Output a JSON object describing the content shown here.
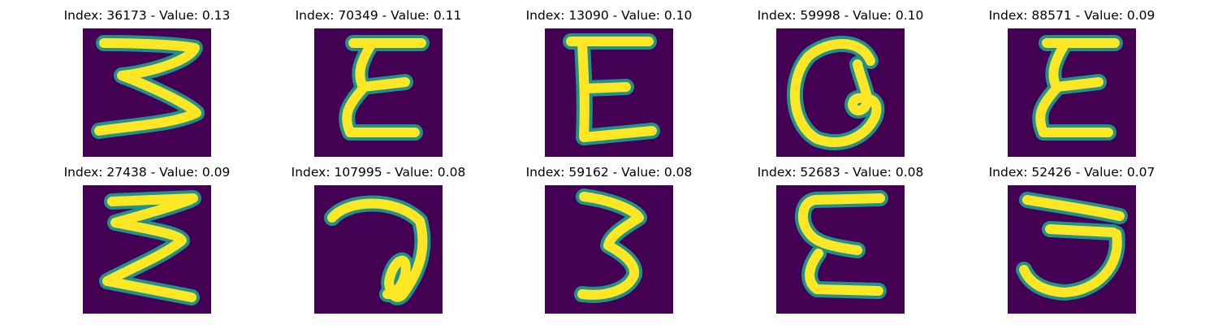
{
  "figure": {
    "background": "#440154",
    "stroke_outer": "#21918c",
    "stroke_inner": "#fde725",
    "colormap": "viridis",
    "items": [
      {
        "title": "Index: 36173 - Value: 0.13",
        "glyph": "zigzag-3"
      },
      {
        "title": "Index: 70349 - Value: 0.11",
        "glyph": "epsilon-flat"
      },
      {
        "title": "Index: 13090 - Value: 0.10",
        "glyph": "E-shape"
      },
      {
        "title": "Index: 59998 - Value: 0.10",
        "glyph": "a-loop"
      },
      {
        "title": "Index: 88571 - Value: 0.09",
        "glyph": "epsilon-flat"
      },
      {
        "title": "Index: 27438 - Value: 0.09",
        "glyph": "zigzag-sigma"
      },
      {
        "title": "Index: 107995 - Value: 0.08",
        "glyph": "a-script"
      },
      {
        "title": "Index: 59162 - Value: 0.08",
        "glyph": "three-tilted"
      },
      {
        "title": "Index: 52683 - Value: 0.08",
        "glyph": "E-rounded"
      },
      {
        "title": "Index: 52426 - Value: 0.07",
        "glyph": "three-rounded"
      }
    ]
  }
}
